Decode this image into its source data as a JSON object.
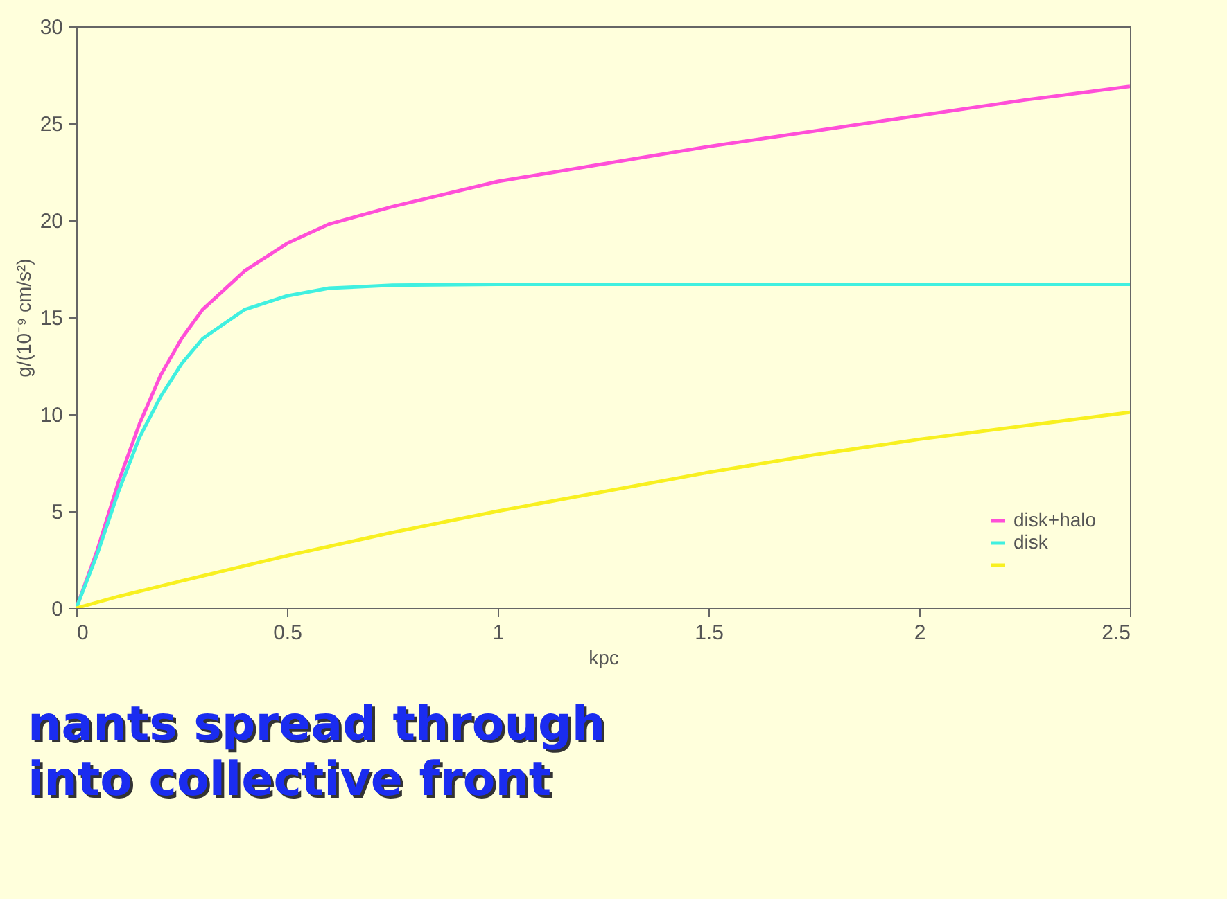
{
  "chart_data": {
    "type": "line",
    "xlabel": "kpc",
    "ylabel": "g/(10⁻⁹ cm/s²)",
    "xlim": [
      0,
      2.5
    ],
    "ylim": [
      0,
      30
    ],
    "xticks": [
      0,
      0.5,
      1,
      1.5,
      2,
      2.5
    ],
    "yticks": [
      0,
      5,
      10,
      15,
      20,
      25,
      30
    ],
    "grid": false,
    "legend": "bottom right",
    "marker": "none",
    "line_style": "solid",
    "series": [
      {
        "name": "disk+halo",
        "color": "#ff4fd8",
        "x": [
          0,
          0.05,
          0.1,
          0.15,
          0.2,
          0.25,
          0.3,
          0.4,
          0.5,
          0.6,
          0.75,
          1,
          1.25,
          1.5,
          1.75,
          2,
          2.25,
          2.5
        ],
        "values": [
          0,
          3,
          6.5,
          9.5,
          12,
          13.9,
          15.4,
          17.4,
          18.8,
          19.8,
          20.7,
          22,
          22.9,
          23.8,
          24.6,
          25.4,
          26.2,
          26.9
        ]
      },
      {
        "name": "disk",
        "color": "#40f0e0",
        "x": [
          0,
          0.05,
          0.1,
          0.15,
          0.2,
          0.25,
          0.3,
          0.4,
          0.5,
          0.6,
          0.75,
          1,
          1.5,
          2,
          2.5
        ],
        "values": [
          0,
          2.8,
          6,
          8.8,
          10.9,
          12.6,
          13.9,
          15.4,
          16.1,
          16.5,
          16.65,
          16.7,
          16.7,
          16.7,
          16.7
        ]
      },
      {
        "color": "#f8f020",
        "x": [
          0,
          0.1,
          0.25,
          0.5,
          0.75,
          1,
          1.25,
          1.5,
          1.75,
          2,
          2.25,
          2.5
        ],
        "values": [
          0,
          0.6,
          1.4,
          2.7,
          3.9,
          5,
          6,
          7,
          7.9,
          8.7,
          9.4,
          10.1
        ]
      }
    ],
    "annotations": [
      "nants spread through",
      "into collective front"
    ]
  }
}
